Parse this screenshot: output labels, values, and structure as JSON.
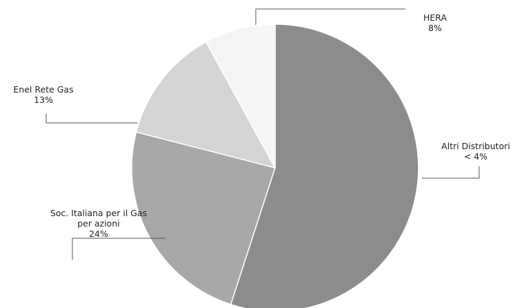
{
  "chart_data": {
    "type": "pie",
    "title": "",
    "slices": [
      {
        "name": "Altri Distributori",
        "label_lines": [
          "Altri Distributori",
          "< 4%"
        ],
        "value": 55,
        "color": "#8c8c8c"
      },
      {
        "name": "Soc. Italiana per il Gas per azioni",
        "label_lines": [
          "Soc. Italiana per il Gas",
          "per azioni",
          "24%"
        ],
        "value": 24,
        "color": "#a8a8a8"
      },
      {
        "name": "Enel Rete Gas",
        "label_lines": [
          "Enel Rete Gas",
          "13%"
        ],
        "value": 13,
        "color": "#d4d4d4"
      },
      {
        "name": "HERA",
        "label_lines": [
          "HERA",
          "8%"
        ],
        "value": 8,
        "color": "#f5f5f5"
      }
    ],
    "start_angle_deg": 0,
    "direction": "clockwise",
    "legend": "none",
    "labels": "outside-with-leader-lines"
  }
}
